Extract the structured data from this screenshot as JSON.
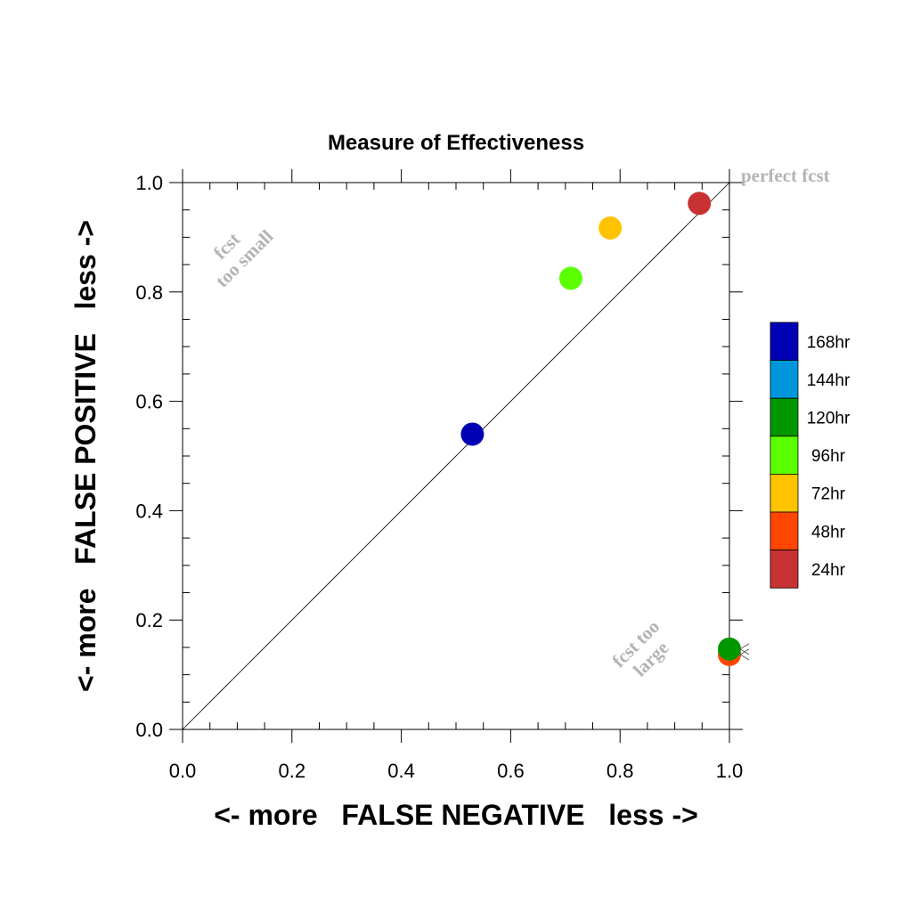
{
  "chart_data": {
    "type": "scatter",
    "title": "Measure of Effectiveness",
    "xlabel": "<- more   FALSE NEGATIVE   less ->",
    "ylabel": "<- more   FALSE POSITIVE   less ->",
    "xlim": [
      0,
      1
    ],
    "ylim": [
      0,
      1
    ],
    "x_ticks": [
      "0.0",
      "0.2",
      "0.4",
      "0.6",
      "0.8",
      "1.0"
    ],
    "y_ticks": [
      "0.0",
      "0.2",
      "0.4",
      "0.6",
      "0.8",
      "1.0"
    ],
    "grid": false,
    "reference_line": "diagonal y = x",
    "annotations": {
      "top_right": "perfect fcst",
      "upper_left_line1": "fcst",
      "upper_left_line2": "too small",
      "lower_right_line1": "fcst too",
      "lower_right_line2": "large"
    },
    "legend_position": "right",
    "series": [
      {
        "name": "168hr",
        "color": "#0000b4",
        "x": 0.53,
        "y": 0.54
      },
      {
        "name": "144hr",
        "color": "#0096db",
        "x": null,
        "y": null
      },
      {
        "name": "120hr",
        "color": "#009600",
        "x": 1.0,
        "y": 0.147
      },
      {
        "name": "96hr",
        "color": "#5aff00",
        "x": 0.71,
        "y": 0.825
      },
      {
        "name": "72hr",
        "color": "#ffc300",
        "x": 0.782,
        "y": 0.917
      },
      {
        "name": "48hr",
        "color": "#ff4600",
        "x": 1.0,
        "y": 0.137
      },
      {
        "name": "24hr",
        "color": "#c83232",
        "x": 0.945,
        "y": 0.962
      }
    ]
  }
}
